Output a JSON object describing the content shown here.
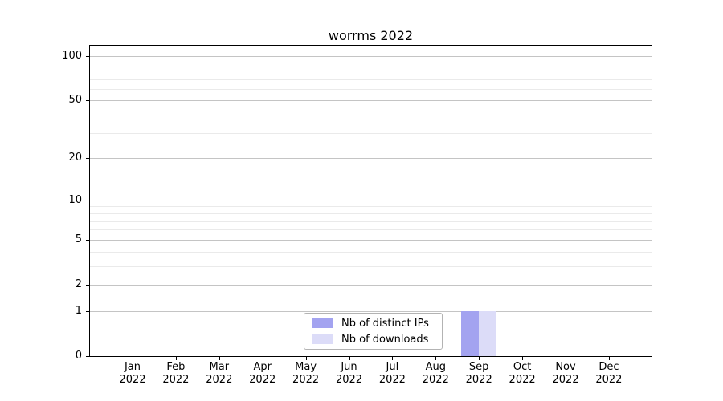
{
  "title": "worrms 2022",
  "colors": {
    "bar_distinct_ips": "#a3a3f0",
    "bar_downloads": "#dcdcf8",
    "major_grid": "#c4c4c4",
    "minor_grid": "#eaeaea",
    "axis": "#000000",
    "legend_border": "#b3b3b3"
  },
  "legend": {
    "items": [
      {
        "label": "Nb of distinct IPs",
        "color": "#a3a3f0"
      },
      {
        "label": "Nb of downloads",
        "color": "#dcdcf8"
      }
    ]
  },
  "axes": {
    "y_major_ticks": [
      100,
      50,
      20,
      10,
      5,
      2,
      1,
      0
    ],
    "y_minor_ticks": [
      90,
      80,
      70,
      60,
      40,
      30,
      9,
      8,
      7,
      6,
      4,
      3
    ],
    "x_months": [
      "Jan",
      "Feb",
      "Mar",
      "Apr",
      "May",
      "Jun",
      "Jul",
      "Aug",
      "Sep",
      "Oct",
      "Nov",
      "Dec"
    ],
    "x_year": "2022"
  },
  "chart_data": {
    "type": "bar",
    "title": "worrms 2022",
    "categories": [
      "Jan 2022",
      "Feb 2022",
      "Mar 2022",
      "Apr 2022",
      "May 2022",
      "Jun 2022",
      "Jul 2022",
      "Aug 2022",
      "Sep 2022",
      "Oct 2022",
      "Nov 2022",
      "Dec 2022"
    ],
    "series": [
      {
        "name": "Nb of distinct IPs",
        "color": "#a3a3f0",
        "values": [
          0,
          0,
          0,
          0,
          0,
          0,
          0,
          0,
          1,
          0,
          0,
          0
        ]
      },
      {
        "name": "Nb of downloads",
        "color": "#dcdcf8",
        "values": [
          0,
          0,
          0,
          0,
          0,
          0,
          0,
          0,
          1,
          0,
          0,
          0
        ]
      }
    ],
    "xlabel": "",
    "ylabel": "",
    "yscale": "log1p",
    "ylim": [
      0,
      117
    ],
    "y_ticks": [
      0,
      1,
      2,
      5,
      10,
      20,
      50,
      100
    ],
    "grid": "horizontal major and minor gridlines",
    "legend_position": "lower center inside plot"
  }
}
